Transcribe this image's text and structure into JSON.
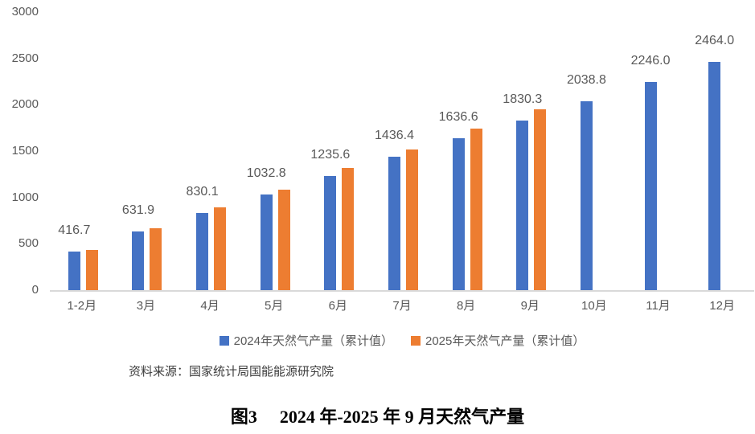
{
  "chart_data": {
    "type": "bar",
    "categories": [
      "1-2月",
      "3月",
      "4月",
      "5月",
      "6月",
      "7月",
      "8月",
      "9月",
      "10月",
      "11月",
      "12月"
    ],
    "series": [
      {
        "name": "2024年天然气产量（累计值）",
        "color": "#4472C4",
        "values": [
          416.7,
          631.9,
          830.1,
          1032.8,
          1235.6,
          1436.4,
          1636.6,
          1830.3,
          2038.8,
          2246.0,
          2464.0
        ],
        "data_labels": [
          "416.7",
          "631.9",
          "830.1",
          "1032.8",
          "1235.6",
          "1436.4",
          "1636.6",
          "1830.3",
          "2038.8",
          "2246.0",
          "2464.0"
        ]
      },
      {
        "name": "2025年天然气产量（累计值）",
        "color": "#ED7D31",
        "values": [
          437,
          665,
          890,
          1085,
          1315,
          1520,
          1745,
          1950,
          null,
          null,
          null
        ],
        "data_labels": null
      }
    ],
    "ylim": [
      0,
      3000
    ],
    "ytick_step": 500,
    "yticks": [
      "0",
      "500",
      "1000",
      "1500",
      "2000",
      "2500",
      "3000"
    ],
    "grid": false,
    "legend_position": "bottom",
    "axis_line_color": "#d9d9d9",
    "text_color": "#595959"
  },
  "source_note": "资料来源：国家统计局国能能源研究院",
  "caption": {
    "label": "图3",
    "title": "2024 年-2025 年 9 月天然气产量"
  }
}
